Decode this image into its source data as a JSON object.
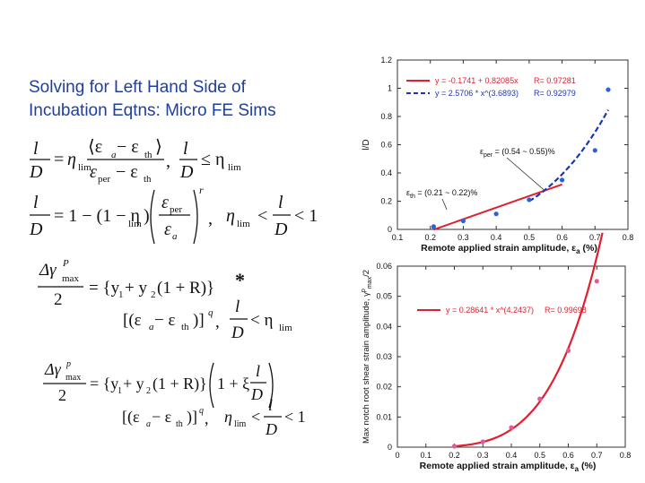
{
  "slide": {
    "title_line1": "Solving for Left Hand Side of",
    "title_line2": "Incubation Eqtns: Micro FE Sims"
  },
  "equations": {
    "eq1": {
      "lhs_num": "l",
      "lhs_den": "D",
      "eq": "=",
      "eta": "η",
      "sub_lim": "lim",
      "frac_num": "⟨ε",
      "num_a": "a",
      "num_minus": " − ε",
      "num_th": "th",
      "num_close": "⟩",
      "frac_den": "ε",
      "den_per": "per",
      "den_minus": " − ε",
      "den_th": "th",
      "comma": ",",
      "cond_num": "l",
      "cond_den": "D",
      "cond_le": "≤ η",
      "cond_lim": "lim"
    },
    "eq2": {
      "lhs_num": "l",
      "lhs_den": "D",
      "rhs": "= 1 − (1 − η",
      "sub_lim": "lim",
      "rhs2": ")",
      "frac_num": "ε",
      "num_per": "per",
      "frac_den": "ε",
      "den_a": "a",
      "exp_r": "r",
      "comma": ",",
      "cond_eta": "η",
      "cond_lim": "lim",
      "cond_lt": "<",
      "cond_num": "l",
      "cond_den": "D",
      "cond_lt1": "< 1"
    },
    "eq3": {
      "num_dg": "Δγ",
      "num_p": "P",
      "num_max": "max",
      "den": "2",
      "rhs": "= {y",
      "s1": "1",
      "plus": " + y",
      "s2": "2",
      "rest": "(1 + R)}",
      "star": "*",
      "bracket": "[(ε",
      "b_a": "a",
      "b_minus": " − ε",
      "b_th": "th",
      "b_close": ")]",
      "b_q": "q",
      "comma": ",",
      "cond_num": "l",
      "cond_den": "D",
      "cond_lt": "< η",
      "cond_lim": "lim"
    },
    "eq4": {
      "num_dg": "Δγ",
      "num_p": "p",
      "num_max": "max",
      "den": "2",
      "rhs": "= {y",
      "s1": "1",
      "plus": " + y",
      "s2": "2",
      "rest": "(1 + R)}",
      "paren_open": "1 + ξ",
      "f_num": "l",
      "f_den": "D",
      "bracket": "[(ε",
      "b_a": "a",
      "b_minus": " − ε",
      "b_th": "th",
      "b_close": ")]",
      "b_q": "q",
      "comma": ",",
      "cond_eta": "η",
      "cond_lim": "lim",
      "cond_lt": "<",
      "cond_num": "l",
      "cond_den": "D",
      "cond_lt1": "< 1"
    }
  },
  "chart_data": [
    {
      "type": "line",
      "ylabel": "l/D",
      "xlabel": "Remote applied strain amplitude, ε",
      "xlabel_sub": "a",
      "xlabel_unit": " (%)",
      "xlim": [
        0.1,
        0.8
      ],
      "ylim": [
        0,
        1.2
      ],
      "xticks": [
        "0.1",
        "0.2",
        "0.3",
        "0.4",
        "0.5",
        "0.6",
        "0.7",
        "0.8"
      ],
      "yticks": [
        "0",
        "0.2",
        "0.4",
        "0.6",
        "0.8",
        "1",
        "1.2"
      ],
      "points": [
        [
          0.21,
          0.02
        ],
        [
          0.3,
          0.06
        ],
        [
          0.4,
          0.11
        ],
        [
          0.5,
          0.21
        ],
        [
          0.6,
          0.35
        ],
        [
          0.7,
          0.56
        ],
        [
          0.74,
          0.99
        ]
      ],
      "point_color": "#2a62d8",
      "legend": [
        {
          "label": "y = -0.1741 + 0.82085x",
          "r": "R= 0.97281",
          "color": "#e0202e",
          "style": "solid"
        },
        {
          "label": "y = 2.5706 * x^(3.6893)",
          "r": "R= 0.92979",
          "color": "#1a36b5",
          "style": "dashed"
        }
      ],
      "legend_position": "top-right",
      "linear_fit": {
        "intercept": -0.1741,
        "slope": 0.82085,
        "x_range": [
          0.21,
          0.6
        ]
      },
      "power_fit": {
        "a": 2.5706,
        "b": 3.6893,
        "x_range": [
          0.5,
          0.74
        ]
      },
      "annotations": [
        {
          "text": "ε",
          "sub": "per",
          "rest": " = (0.54 ~ 0.55)%"
        },
        {
          "text": "ε",
          "sub": "th",
          "rest": " = (0.21 ~ 0.22)%"
        }
      ]
    },
    {
      "type": "line",
      "ylabel": "Max notch root shear strain amplitude, γ",
      "ylabel_sup": "p",
      "ylabel_sub": "max",
      "ylabel_unit": "/2",
      "xlabel": "Remote applied strain amplitude, ε",
      "xlabel_sub": "a",
      "xlabel_unit": " (%)",
      "xlim": [
        0,
        0.8
      ],
      "ylim": [
        0,
        0.06
      ],
      "xticks": [
        "0",
        "0.1",
        "0.2",
        "0.3",
        "0.4",
        "0.5",
        "0.6",
        "0.7",
        "0.8"
      ],
      "yticks": [
        "0",
        "0.01",
        "0.02",
        "0.03",
        "0.04",
        "0.05",
        "0.06"
      ],
      "points": [
        [
          0.2,
          0.0003
        ],
        [
          0.3,
          0.0018
        ],
        [
          0.4,
          0.0065
        ],
        [
          0.5,
          0.016
        ],
        [
          0.6,
          0.032
        ],
        [
          0.7,
          0.055
        ]
      ],
      "point_color": "#e05a9a",
      "legend": [
        {
          "label": "y = 0.28641 * x^(4.2437)",
          "r": "R= 0.99698",
          "color": "#e0202e",
          "style": "solid"
        }
      ],
      "legend_position": "top-left",
      "power_fit": {
        "a": 0.28641,
        "b": 4.2437,
        "x_range": [
          0.2,
          0.72
        ]
      }
    }
  ]
}
